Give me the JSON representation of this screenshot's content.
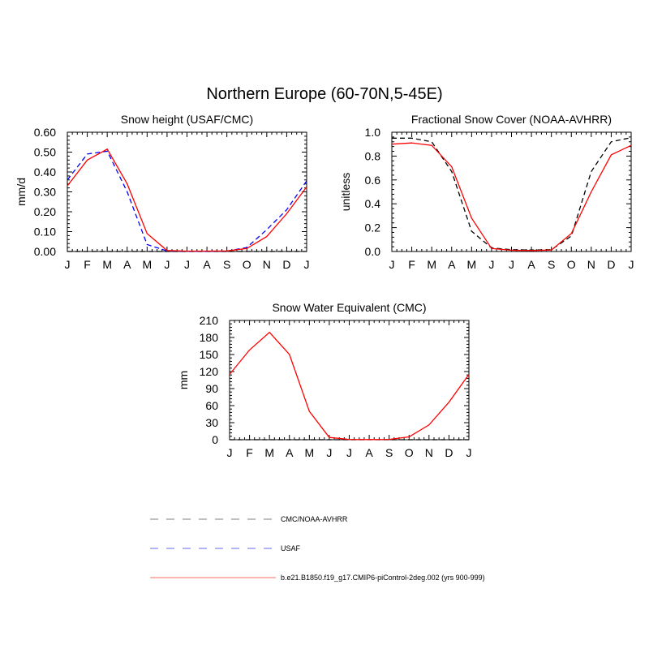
{
  "figure": {
    "title": "Northern Europe (60-70N,5-45E)"
  },
  "chart_data": [
    {
      "type": "line",
      "title": "Snow height (USAF/CMC)",
      "xlabel": "",
      "ylabel": "mm/d",
      "x": [
        "J",
        "F",
        "M",
        "A",
        "M",
        "J",
        "J",
        "A",
        "S",
        "O",
        "N",
        "D",
        "J"
      ],
      "ylim": [
        0,
        0.6
      ],
      "yticks": [
        "0.00",
        "0.10",
        "0.20",
        "0.30",
        "0.40",
        "0.50",
        "0.60"
      ],
      "grid": false,
      "series": [
        {
          "name": "CMC/NOAA-AVHRR",
          "color": "#000000",
          "dash": "dashed",
          "values": [
            0,
            0,
            0,
            0,
            0,
            0,
            0,
            0,
            0,
            0,
            0,
            0,
            0
          ]
        },
        {
          "name": "USAF",
          "color": "#0000ff",
          "dash": "dashed",
          "values": [
            0.36,
            0.49,
            0.505,
            0.3,
            0.035,
            0.003,
            0.001,
            0.001,
            0.002,
            0.02,
            0.11,
            0.21,
            0.355
          ]
        },
        {
          "name": "b.e21.B1850.f19_g17.CMIP6-piControl-2deg.002 (yrs 900-999)",
          "color": "#ff0000",
          "dash": "solid",
          "values": [
            0.33,
            0.46,
            0.515,
            0.34,
            0.09,
            0.005,
            0.002,
            0.002,
            0.003,
            0.015,
            0.075,
            0.19,
            0.325
          ]
        }
      ]
    },
    {
      "type": "line",
      "title": "Fractional Snow Cover (NOAA-AVHRR)",
      "xlabel": "",
      "ylabel": "unitless",
      "x": [
        "J",
        "F",
        "M",
        "A",
        "M",
        "J",
        "J",
        "A",
        "S",
        "O",
        "N",
        "D",
        "J"
      ],
      "ylim": [
        0,
        1.0
      ],
      "yticks": [
        "0.0",
        "0.2",
        "0.4",
        "0.6",
        "0.8",
        "1.0"
      ],
      "grid": false,
      "series": [
        {
          "name": "CMC/NOAA-AVHRR",
          "color": "#000000",
          "dash": "dashed",
          "values": [
            0.95,
            0.95,
            0.92,
            0.67,
            0.17,
            0.03,
            0.015,
            0.012,
            0.015,
            0.13,
            0.67,
            0.92,
            0.955
          ]
        },
        {
          "name": "b.e21.B1850.f19_g17.CMIP6-piControl-2deg.002 (yrs 900-999)",
          "color": "#ff0000",
          "dash": "solid",
          "values": [
            0.9,
            0.91,
            0.89,
            0.71,
            0.28,
            0.025,
            0.01,
            0.008,
            0.012,
            0.15,
            0.5,
            0.81,
            0.89
          ]
        }
      ]
    },
    {
      "type": "line",
      "title": "Snow Water Equivalent (CMC)",
      "xlabel": "",
      "ylabel": "mm",
      "x": [
        "J",
        "F",
        "M",
        "A",
        "M",
        "J",
        "J",
        "A",
        "S",
        "O",
        "N",
        "D",
        "J"
      ],
      "ylim": [
        0,
        210
      ],
      "yticks": [
        "0",
        "30",
        "60",
        "90",
        "120",
        "150",
        "180",
        "210"
      ],
      "grid": false,
      "series": [
        {
          "name": "CMC/NOAA-AVHRR",
          "color": "#000000",
          "dash": "dashed",
          "values": [
            0,
            0,
            0,
            0,
            0,
            0,
            0,
            0,
            0,
            0,
            0,
            0,
            0
          ]
        },
        {
          "name": "b.e21.B1850.f19_g17.CMIP6-piControl-2deg.002 (yrs 900-999)",
          "color": "#ff0000",
          "dash": "solid",
          "values": [
            115,
            158,
            189,
            150,
            50,
            4,
            0.5,
            0.3,
            0.5,
            5,
            26,
            66,
            115
          ]
        }
      ]
    }
  ],
  "legend": {
    "placement": "bottom",
    "items": [
      {
        "label": "CMC/NOAA-AVHRR",
        "color": "#999999",
        "dash": "dashed"
      },
      {
        "label": "USAF",
        "color": "#8888ee",
        "dash": "dashed"
      },
      {
        "label": "b.e21.B1850.f19_g17.CMIP6-piControl-2deg.002 (yrs 900-999)",
        "color": "#ff8888",
        "dash": "solid"
      }
    ]
  }
}
